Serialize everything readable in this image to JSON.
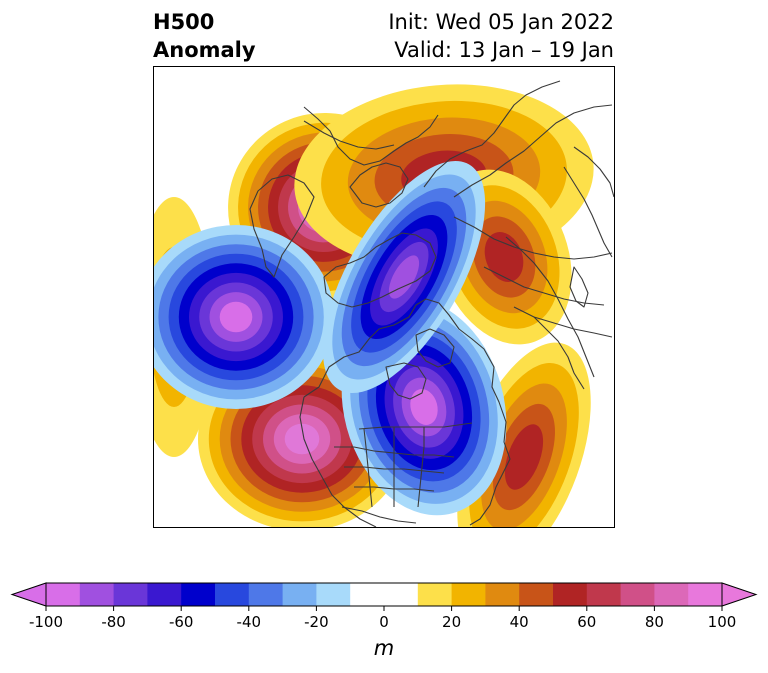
{
  "title": {
    "left_line1": "H500",
    "left_line2": "Anomaly",
    "right_line1": "Init: Wed 05 Jan 2022",
    "right_line2": "Valid: 13 Jan – 19 Jan"
  },
  "colorbar": {
    "unit": "m",
    "ticks": [
      "-100",
      "-80",
      "-60",
      "-40",
      "-20",
      "0",
      "20",
      "40",
      "60",
      "80",
      "100"
    ],
    "tick_values": [
      -100,
      -80,
      -60,
      -40,
      -20,
      0,
      20,
      40,
      60,
      80,
      100
    ],
    "range": [
      -100,
      100
    ],
    "extend": "both",
    "colors": [
      "#d86ee8",
      "#a050e0",
      "#6a36d8",
      "#3a18d0",
      "#0000cc",
      "#2848de",
      "#4e78e8",
      "#78b0f2",
      "#a8dafa",
      "#ffffff",
      "#ffffff",
      "#fde04a",
      "#f2b400",
      "#e08a10",
      "#c85418",
      "#b02424",
      "#c0384c",
      "#d05088",
      "#dc68b8",
      "#e878dc"
    ]
  },
  "map_colors": {
    "pos": [
      "#fde04a",
      "#f2b400",
      "#e08a10",
      "#c85418",
      "#b02424",
      "#c0384c",
      "#d05088",
      "#dc68b8",
      "#e078d8"
    ],
    "neg": [
      "#a8dafa",
      "#78b0f2",
      "#4e78e8",
      "#2848de",
      "#0000cc",
      "#3a18d0",
      "#6a36d8",
      "#a050e0",
      "#d86ee8"
    ],
    "coastline": "#3a3a3a"
  }
}
